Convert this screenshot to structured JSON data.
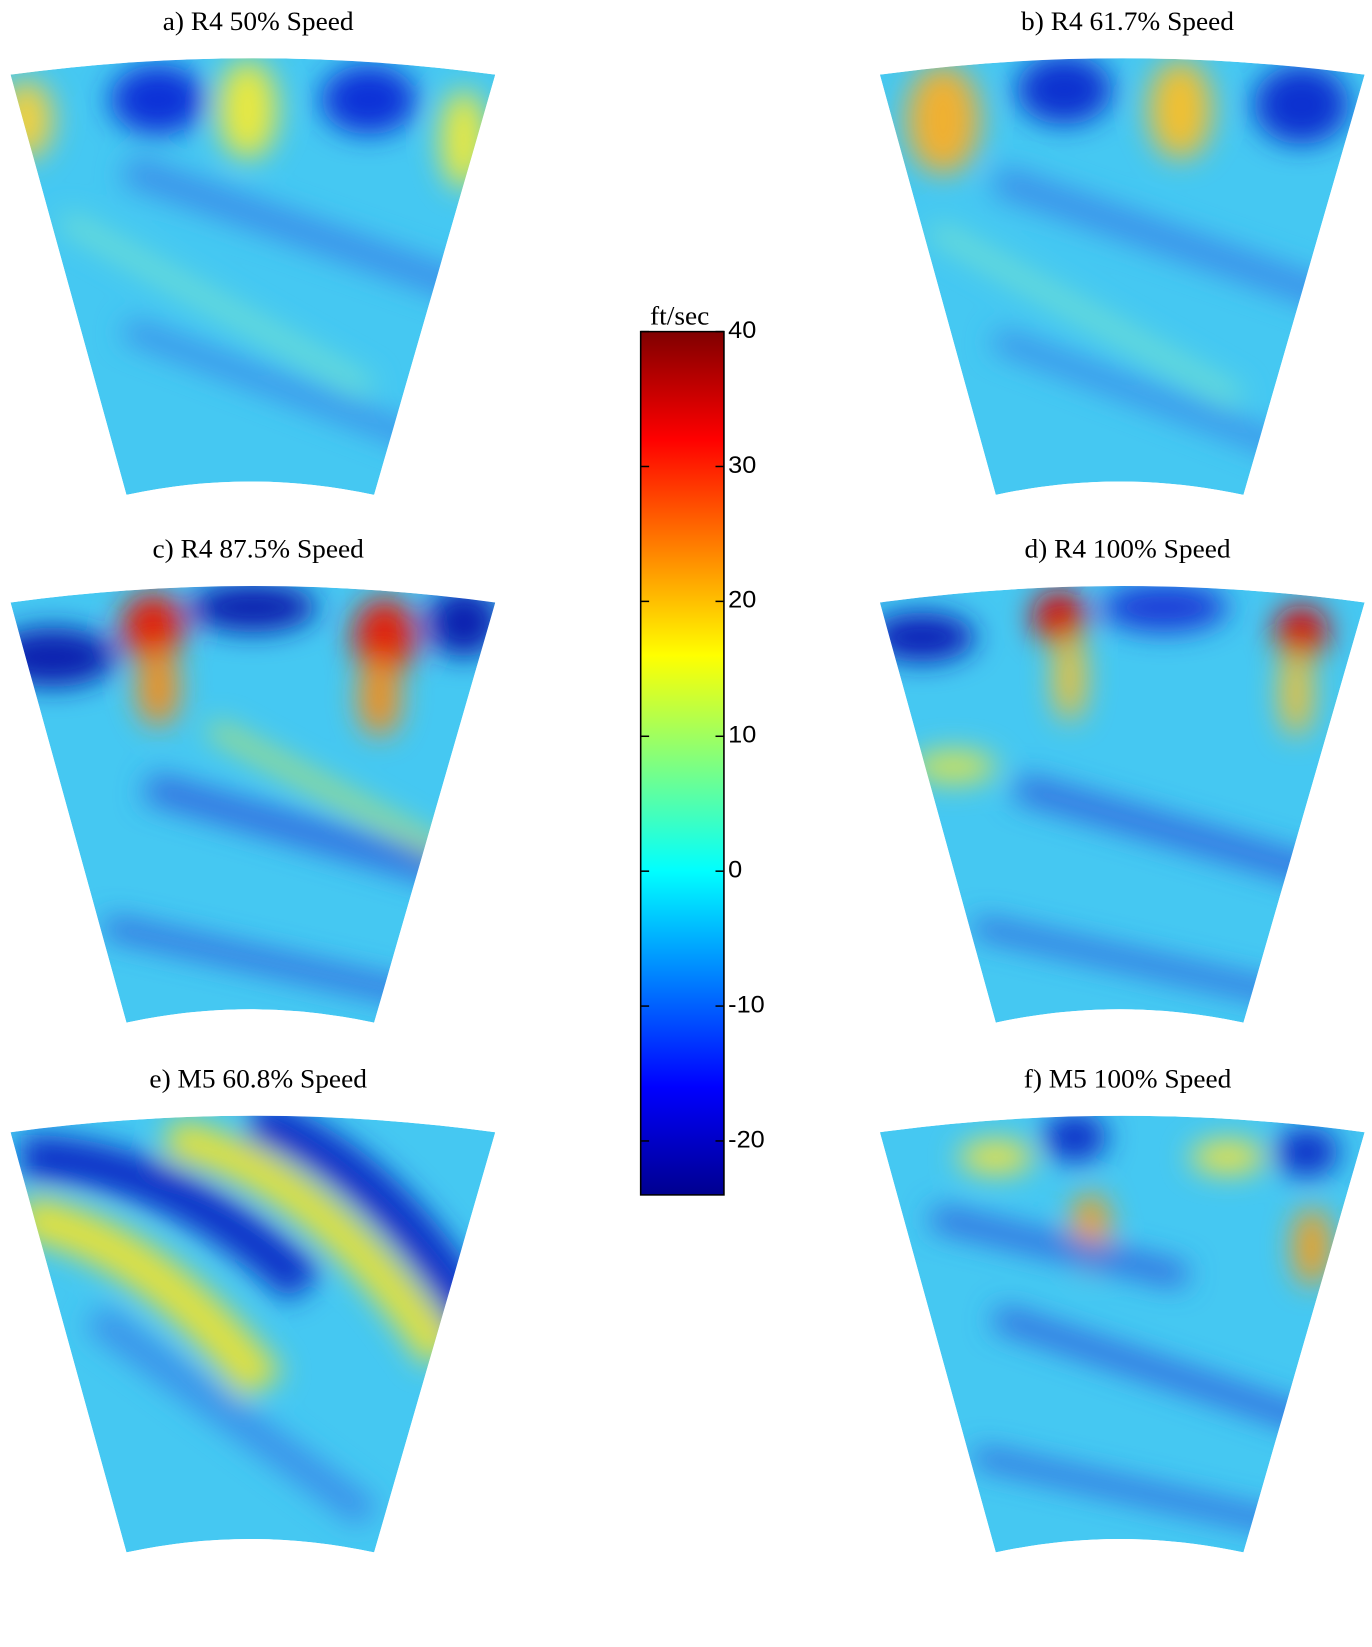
{
  "chart_data": {
    "type": "heatmap",
    "panel_titles": [
      "a) R4 50% Speed",
      "b) R4 61.7% Speed",
      "c) R4 87.5% Speed",
      "d) R4 100% Speed",
      "e) M5 60.8% Speed",
      "f) M5 100% Speed"
    ],
    "ylabel": "ft/sec",
    "ylim": [
      -24,
      40
    ],
    "yticks": [
      -20,
      -10,
      0,
      10,
      20,
      30,
      40
    ]
  }
}
